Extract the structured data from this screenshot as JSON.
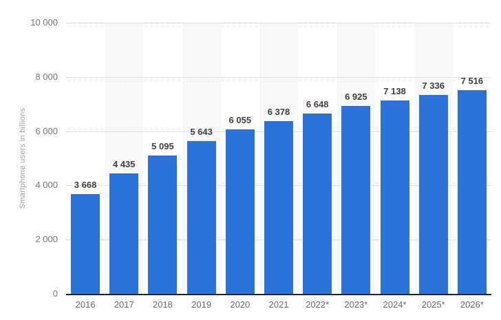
{
  "chart_data": {
    "type": "bar",
    "title": "",
    "xlabel": "",
    "ylabel": "Smartphone users in billions",
    "ylim": [
      0,
      10000
    ],
    "grid": "horizontal-dotted",
    "legend": null,
    "categories": [
      "2016",
      "2017",
      "2018",
      "2019",
      "2020",
      "2021",
      "2022*",
      "2023*",
      "2024*",
      "2025*",
      "2026*"
    ],
    "values": [
      3668,
      4435,
      5095,
      5643,
      6055,
      6378,
      6648,
      6925,
      7138,
      7336,
      7516
    ],
    "value_labels": [
      "3 668",
      "4 435",
      "5 095",
      "5 643",
      "6 055",
      "6 378",
      "6 648",
      "6 925",
      "7 138",
      "7 336",
      "7 516"
    ],
    "yticks": [
      {
        "value": 10000,
        "label": "10 000"
      },
      {
        "value": 8000,
        "label": "8 000"
      },
      {
        "value": 6000,
        "label": "6 000"
      },
      {
        "value": 4000,
        "label": "4 000"
      },
      {
        "value": 2000,
        "label": "2 000"
      },
      {
        "value": 0,
        "label": "0"
      }
    ],
    "colors": {
      "bar": "#2b73d9",
      "stripe": "#f7f7f7",
      "grid_line": "#c9c9c9",
      "axis_line": "#222222",
      "value_label": "#3f3f3f",
      "tick_label": "#767676",
      "x_label": "#666666",
      "axis_title": "#9d9d9d",
      "background": "#ffffff"
    }
  }
}
